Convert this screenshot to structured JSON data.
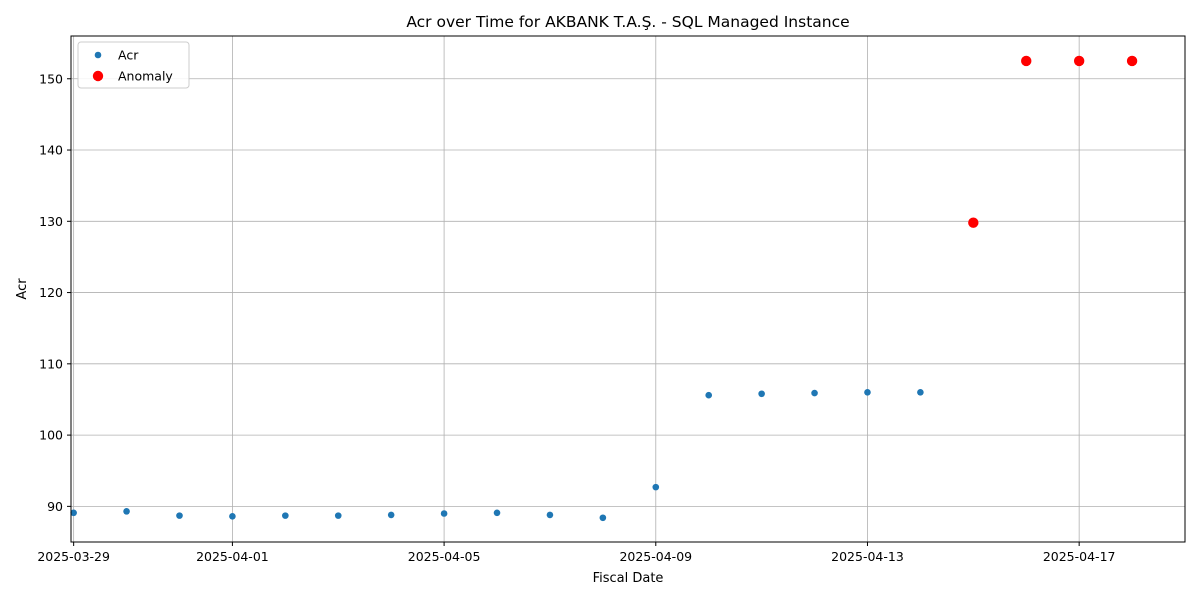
{
  "chart_data": {
    "type": "scatter",
    "title": "Acr over Time for AKBANK T.A.Ş. - SQL Managed Instance",
    "xlabel": "Fiscal Date",
    "ylabel": "Acr",
    "x_tick_labels": [
      "2025-03-29",
      "2025-04-01",
      "2025-04-05",
      "2025-04-09",
      "2025-04-13",
      "2025-04-17"
    ],
    "y_ticks": [
      90,
      100,
      110,
      120,
      130,
      140,
      150
    ],
    "xlim": [
      "2025-03-28",
      "2025-04-19"
    ],
    "ylim": [
      85,
      156
    ],
    "grid": true,
    "legend_position": "top-left",
    "series": [
      {
        "name": "Acr",
        "color": "#1f77b4",
        "marker": "small-circle",
        "points": [
          {
            "x": "2025-03-29",
            "y": 89.1
          },
          {
            "x": "2025-03-30",
            "y": 89.3
          },
          {
            "x": "2025-03-31",
            "y": 88.7
          },
          {
            "x": "2025-04-01",
            "y": 88.6
          },
          {
            "x": "2025-04-02",
            "y": 88.7
          },
          {
            "x": "2025-04-03",
            "y": 88.7
          },
          {
            "x": "2025-04-04",
            "y": 88.8
          },
          {
            "x": "2025-04-05",
            "y": 89.0
          },
          {
            "x": "2025-04-06",
            "y": 89.1
          },
          {
            "x": "2025-04-07",
            "y": 88.8
          },
          {
            "x": "2025-04-08",
            "y": 88.4
          },
          {
            "x": "2025-04-09",
            "y": 92.7
          },
          {
            "x": "2025-04-10",
            "y": 105.6
          },
          {
            "x": "2025-04-11",
            "y": 105.8
          },
          {
            "x": "2025-04-12",
            "y": 105.9
          },
          {
            "x": "2025-04-13",
            "y": 106.0
          },
          {
            "x": "2025-04-14",
            "y": 106.0
          },
          {
            "x": "2025-04-15",
            "y": 129.8
          },
          {
            "x": "2025-04-16",
            "y": 152.5
          },
          {
            "x": "2025-04-17",
            "y": 152.5
          },
          {
            "x": "2025-04-18",
            "y": 152.5
          }
        ]
      },
      {
        "name": "Anomaly",
        "color": "#ff0000",
        "marker": "large-circle",
        "points": [
          {
            "x": "2025-04-15",
            "y": 129.8
          },
          {
            "x": "2025-04-16",
            "y": 152.5
          },
          {
            "x": "2025-04-17",
            "y": 152.5
          },
          {
            "x": "2025-04-18",
            "y": 152.5
          }
        ]
      }
    ]
  }
}
